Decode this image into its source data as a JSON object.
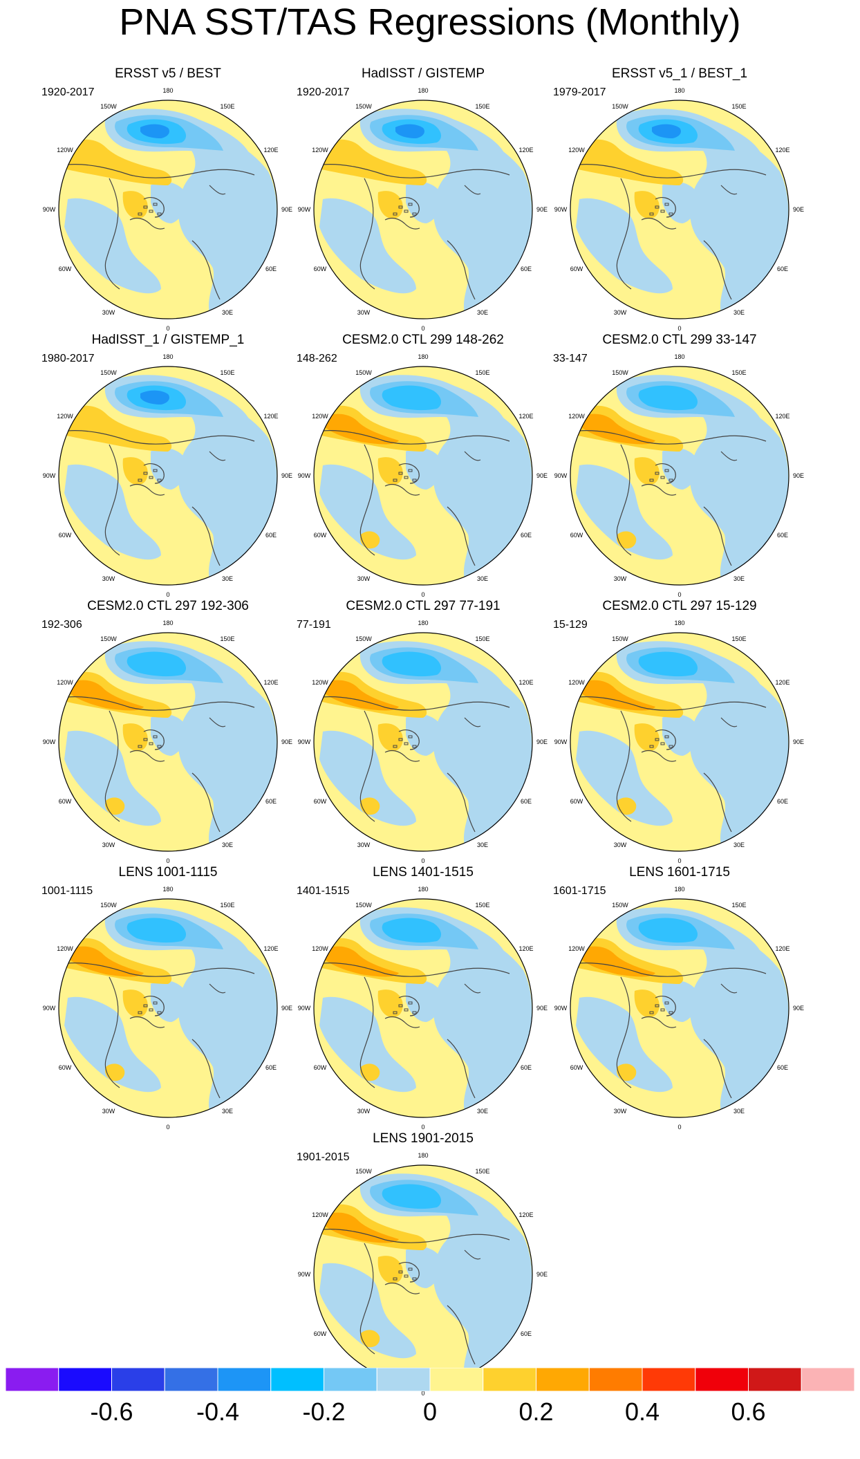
{
  "title": "PNA SST/TAS Regressions (Monthly)",
  "colors": {
    "warm_light": "#fff48f",
    "warm_mid": "#fed12e",
    "warm_strong": "#ffa803",
    "cool_light": "#aed8f0",
    "cool_mid": "#74c8f5",
    "cool_strong": "#31c1fe",
    "cool_deep": "#1c95f5",
    "land_outline": "#444444"
  },
  "longitude_labels": [
    "180",
    "150E",
    "120E",
    "90E",
    "60E",
    "30E",
    "0",
    "30W",
    "60W",
    "90W",
    "120W",
    "150W"
  ],
  "panels": [
    {
      "title": "ERSST v5 / BEST",
      "period": "1920-2017",
      "style": "obs"
    },
    {
      "title": "HadISST / GISTEMP",
      "period": "1920-2017",
      "style": "obs"
    },
    {
      "title": "ERSST v5_1 / BEST_1",
      "period": "1979-2017",
      "style": "obs"
    },
    {
      "title": "HadISST_1 / GISTEMP_1",
      "period": "1980-2017",
      "style": "obs"
    },
    {
      "title": "CESM2.0 CTL 299 148-262",
      "period": "148-262",
      "style": "model"
    },
    {
      "title": "CESM2.0 CTL 299 33-147",
      "period": "33-147",
      "style": "model"
    },
    {
      "title": "CESM2.0 CTL 297 192-306",
      "period": "192-306",
      "style": "model"
    },
    {
      "title": "CESM2.0 CTL 297 77-191",
      "period": "77-191",
      "style": "model"
    },
    {
      "title": "CESM2.0 CTL 297 15-129",
      "period": "15-129",
      "style": "model"
    },
    {
      "title": "LENS 1001-1115",
      "period": "1001-1115",
      "style": "lens"
    },
    {
      "title": "LENS 1401-1515",
      "period": "1401-1515",
      "style": "lens"
    },
    {
      "title": "LENS 1601-1715",
      "period": "1601-1715",
      "style": "lens"
    },
    {
      "title": "LENS 1901-2015",
      "period": "1901-2015",
      "style": "lens"
    }
  ],
  "colorbar": {
    "colors": [
      "#8a1cf0",
      "#1a0bfe",
      "#2a3fe8",
      "#3470e6",
      "#1d95f6",
      "#00bfff",
      "#74c8f5",
      "#aed8f0",
      "#fff48f",
      "#fed12e",
      "#ffa803",
      "#ff7c00",
      "#ff3a06",
      "#f0000a",
      "#d01818",
      "#fbb3b5"
    ],
    "labels": [
      "-0.6",
      "-0.4",
      "-0.2",
      "0",
      "0.2",
      "0.4",
      "0.6"
    ]
  }
}
